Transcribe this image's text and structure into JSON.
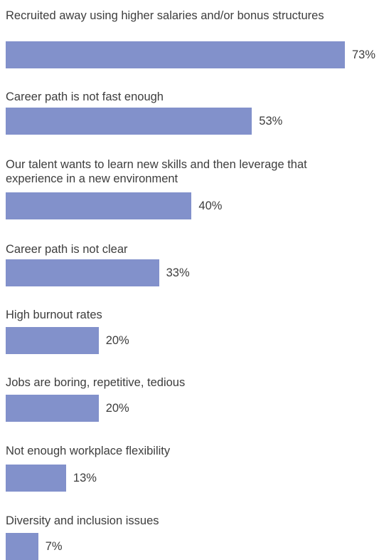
{
  "chart_data": {
    "type": "bar",
    "orientation": "horizontal",
    "bar_color": "#8291cb",
    "categories": [
      "Recruited away using higher salaries and/or bonus structures",
      "Career path is not fast enough",
      "Our talent wants to learn new skills and then leverage that experience in a new environment",
      "Career path is not clear",
      "High burnout rates",
      "Jobs are boring, repetitive, tedious",
      "Not enough workplace flexibility",
      "Diversity and inclusion issues"
    ],
    "values": [
      73,
      53,
      40,
      33,
      20,
      20,
      13,
      7
    ],
    "value_labels": [
      "73%",
      "53%",
      "40%",
      "33%",
      "20%",
      "20%",
      "13%",
      "7%"
    ],
    "unit": "%"
  }
}
